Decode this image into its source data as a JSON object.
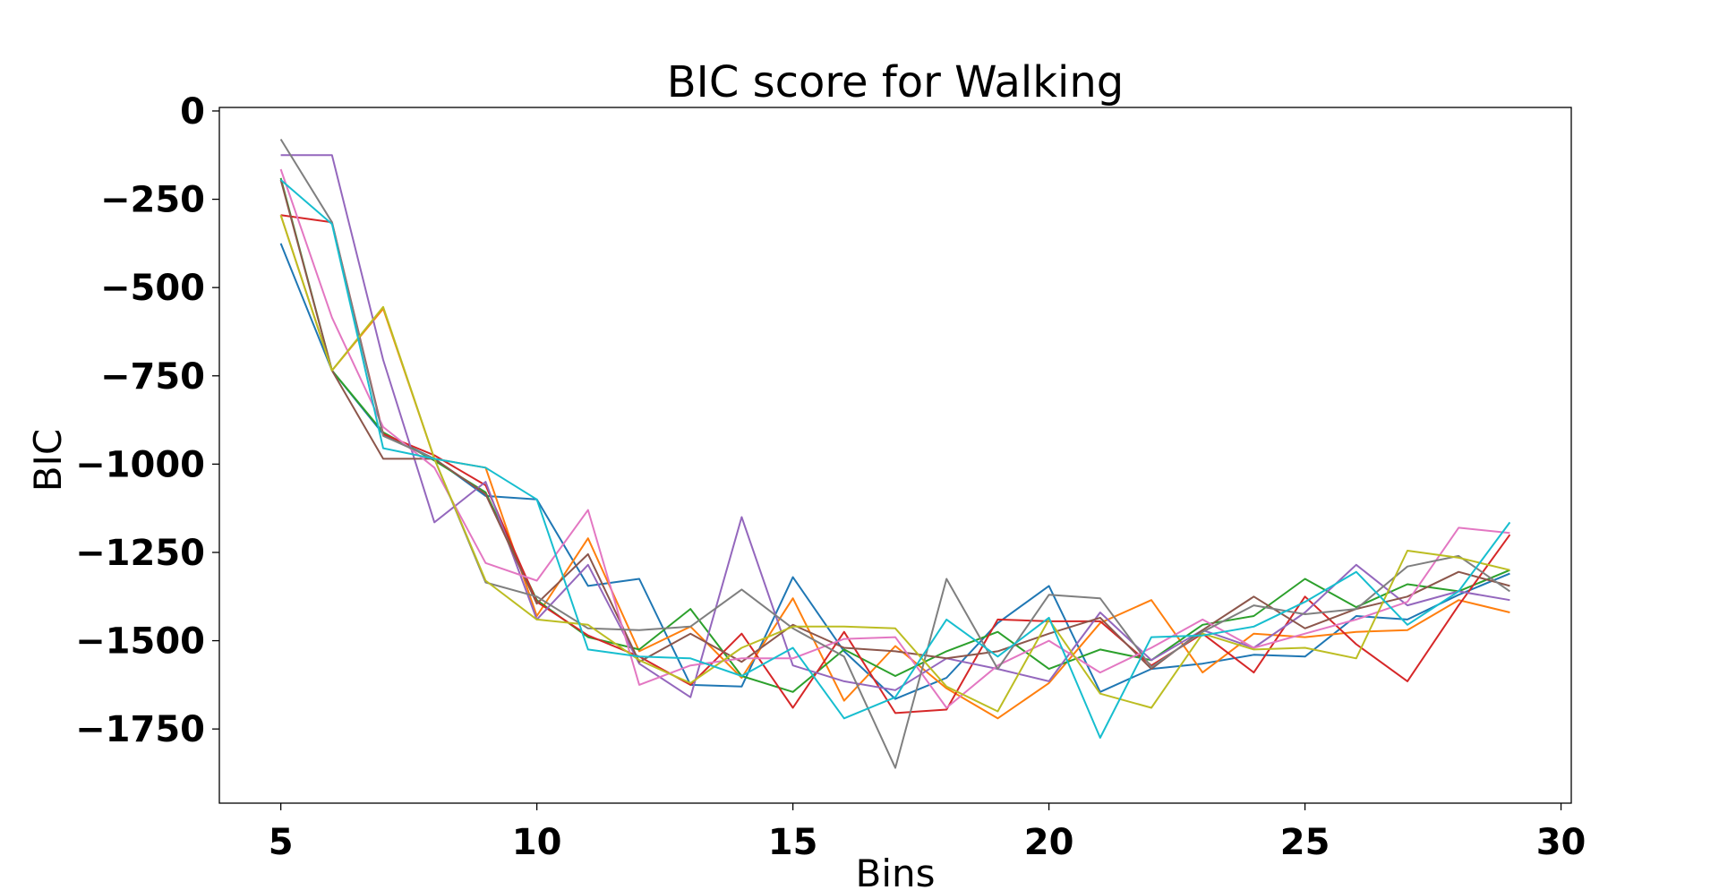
{
  "chart_data": {
    "type": "line",
    "title": "BIC score for Walking",
    "xlabel": "Bins",
    "ylabel": "BIC",
    "xlim": [
      3.8,
      30.2
    ],
    "ylim": [
      -1960,
      10
    ],
    "xticks": [
      5,
      10,
      15,
      20,
      25,
      30
    ],
    "yticks": [
      0,
      -250,
      -500,
      -750,
      -1000,
      -1250,
      -1500,
      -1750
    ],
    "xtick_labels": [
      "5",
      "10",
      "15",
      "20",
      "25",
      "30"
    ],
    "ytick_labels": [
      "0",
      "−250",
      "−500",
      "−750",
      "−1000",
      "−1250",
      "−1500",
      "−1750"
    ],
    "grid": false,
    "x": [
      5,
      6,
      7,
      8,
      9,
      10,
      11,
      12,
      13,
      14,
      15,
      16,
      17,
      18,
      19,
      20,
      21,
      22,
      23,
      24,
      25,
      26,
      27,
      28,
      29
    ],
    "series": [
      {
        "color": "#1f77b4",
        "values": [
          -375,
          -735,
          -915,
          -985,
          -1090,
          -1100,
          -1345,
          -1325,
          -1625,
          -1630,
          -1320,
          -1530,
          -1665,
          -1605,
          -1450,
          -1345,
          -1645,
          -1580,
          -1565,
          -1540,
          -1545,
          -1430,
          -1440,
          -1370,
          -1310
        ]
      },
      {
        "color": "#ff7f0e",
        "values": [
          -295,
          -735,
          -560,
          -985,
          -1010,
          -1430,
          -1210,
          -1530,
          -1460,
          -1605,
          -1380,
          -1670,
          -1515,
          -1635,
          -1720,
          -1620,
          -1450,
          -1385,
          -1590,
          -1480,
          -1490,
          -1475,
          -1470,
          -1385,
          -1420
        ]
      },
      {
        "color": "#2ca02c",
        "values": [
          -190,
          -735,
          -910,
          -990,
          -1080,
          -1385,
          -1490,
          -1525,
          -1410,
          -1600,
          -1645,
          -1525,
          -1600,
          -1530,
          -1475,
          -1580,
          -1525,
          -1555,
          -1455,
          -1430,
          -1325,
          -1405,
          -1340,
          -1360,
          -1300
        ]
      },
      {
        "color": "#d62728",
        "values": [
          -295,
          -315,
          -915,
          -975,
          -1060,
          -1390,
          -1485,
          -1545,
          -1625,
          -1480,
          -1690,
          -1475,
          -1705,
          -1695,
          -1440,
          -1445,
          -1445,
          -1570,
          -1480,
          -1590,
          -1375,
          -1510,
          -1615,
          -1400,
          -1200
        ]
      },
      {
        "color": "#9467bd",
        "values": [
          -125,
          -125,
          -705,
          -1165,
          -1050,
          -1440,
          -1285,
          -1565,
          -1660,
          -1150,
          -1570,
          -1615,
          -1640,
          -1550,
          -1580,
          -1615,
          -1420,
          -1555,
          -1470,
          -1520,
          -1420,
          -1285,
          -1400,
          -1360,
          -1385
        ]
      },
      {
        "color": "#8c564b",
        "values": [
          -195,
          -735,
          -985,
          -985,
          -1085,
          -1395,
          -1255,
          -1560,
          -1480,
          -1560,
          -1455,
          -1520,
          -1530,
          -1550,
          -1530,
          -1480,
          -1435,
          -1580,
          -1470,
          -1375,
          -1465,
          -1410,
          -1375,
          -1305,
          -1345
        ]
      },
      {
        "color": "#e377c2",
        "values": [
          -165,
          -585,
          -895,
          -1010,
          -1280,
          -1330,
          -1130,
          -1625,
          -1570,
          -1550,
          -1550,
          -1495,
          -1490,
          -1690,
          -1570,
          -1500,
          -1590,
          -1520,
          -1440,
          -1520,
          -1480,
          -1440,
          -1390,
          -1180,
          -1195
        ]
      },
      {
        "color": "#7f7f7f",
        "values": [
          -80,
          -315,
          -920,
          -985,
          -1335,
          -1375,
          -1465,
          -1470,
          -1460,
          -1355,
          -1465,
          -1545,
          -1860,
          -1325,
          -1580,
          -1370,
          -1380,
          -1575,
          -1475,
          -1400,
          -1425,
          -1410,
          -1290,
          -1260,
          -1360
        ]
      },
      {
        "color": "#bcbd22",
        "values": [
          -295,
          -735,
          -555,
          -985,
          -1330,
          -1440,
          -1455,
          -1555,
          -1620,
          -1520,
          -1460,
          -1460,
          -1465,
          -1630,
          -1700,
          -1440,
          -1650,
          -1690,
          -1480,
          -1525,
          -1520,
          -1550,
          -1245,
          -1265,
          -1300
        ]
      },
      {
        "color": "#17becf",
        "values": [
          -195,
          -320,
          -955,
          -985,
          -1010,
          -1100,
          -1525,
          -1545,
          -1550,
          -1600,
          -1520,
          -1720,
          -1660,
          -1440,
          -1545,
          -1435,
          -1775,
          -1490,
          -1485,
          -1460,
          -1390,
          -1305,
          -1455,
          -1360,
          -1165
        ]
      }
    ]
  }
}
